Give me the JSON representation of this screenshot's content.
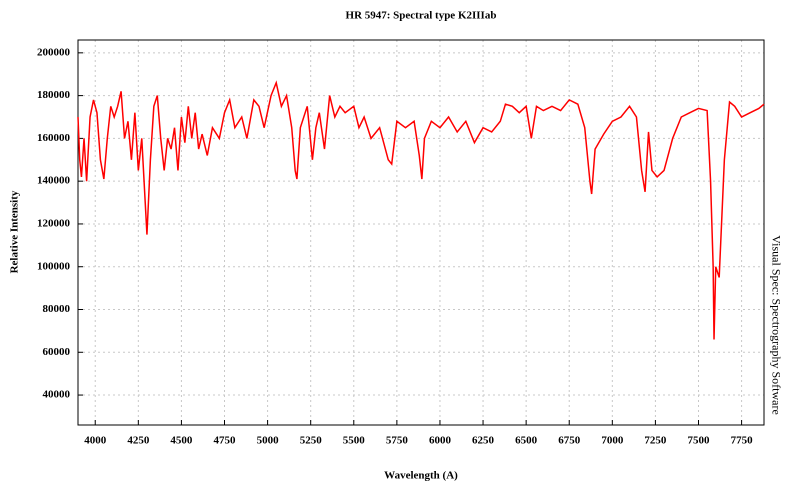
{
  "chart_data": {
    "type": "line",
    "title": "HR 5947: Spectral type K2IIIab",
    "xlabel": "Wavelength (A)",
    "ylabel": "Relative Intensity",
    "annotation": "Visual Spec: Spectrography Software",
    "color": "#ff0000",
    "grid": true,
    "xlim": [
      3900,
      7880
    ],
    "ylim": [
      26000,
      206000
    ],
    "xticks": [
      4000,
      4250,
      4500,
      4750,
      5000,
      5250,
      5500,
      5750,
      6000,
      6250,
      6500,
      6750,
      7000,
      7250,
      7500,
      7750
    ],
    "yticks": [
      40000,
      60000,
      80000,
      100000,
      120000,
      140000,
      160000,
      180000,
      200000
    ],
    "x": [
      3900,
      3910,
      3920,
      3935,
      3950,
      3970,
      3990,
      4010,
      4030,
      4050,
      4070,
      4090,
      4110,
      4130,
      4150,
      4170,
      4190,
      4210,
      4230,
      4250,
      4270,
      4290,
      4300,
      4320,
      4340,
      4360,
      4380,
      4400,
      4420,
      4440,
      4460,
      4480,
      4500,
      4520,
      4540,
      4560,
      4580,
      4600,
      4620,
      4650,
      4680,
      4720,
      4750,
      4780,
      4810,
      4850,
      4880,
      4920,
      4950,
      4980,
      5020,
      5050,
      5080,
      5110,
      5140,
      5160,
      5170,
      5190,
      5230,
      5260,
      5280,
      5300,
      5330,
      5360,
      5390,
      5420,
      5450,
      5500,
      5530,
      5560,
      5600,
      5650,
      5700,
      5720,
      5750,
      5800,
      5850,
      5880,
      5895,
      5910,
      5950,
      6000,
      6050,
      6100,
      6150,
      6200,
      6250,
      6300,
      6350,
      6380,
      6420,
      6460,
      6500,
      6530,
      6560,
      6600,
      6650,
      6700,
      6750,
      6800,
      6840,
      6870,
      6880,
      6900,
      6950,
      7000,
      7050,
      7100,
      7140,
      7170,
      7190,
      7210,
      7230,
      7260,
      7300,
      7350,
      7400,
      7450,
      7500,
      7550,
      7570,
      7585,
      7590,
      7600,
      7620,
      7650,
      7680,
      7710,
      7750,
      7800,
      7850,
      7880
    ],
    "values": [
      170000,
      150000,
      142000,
      160000,
      140000,
      170000,
      178000,
      172000,
      150000,
      141000,
      160000,
      175000,
      170000,
      175000,
      182000,
      160000,
      168000,
      150000,
      172000,
      145000,
      160000,
      130000,
      115000,
      150000,
      175000,
      180000,
      160000,
      145000,
      160000,
      155000,
      165000,
      145000,
      170000,
      158000,
      175000,
      160000,
      172000,
      155000,
      162000,
      152000,
      165000,
      160000,
      172000,
      178000,
      165000,
      170000,
      160000,
      178000,
      175000,
      165000,
      180000,
      186000,
      175000,
      180000,
      165000,
      145000,
      141000,
      165000,
      175000,
      150000,
      165000,
      172000,
      155000,
      180000,
      170000,
      175000,
      172000,
      175000,
      165000,
      170000,
      160000,
      165000,
      150000,
      148000,
      168000,
      165000,
      168000,
      152000,
      141000,
      160000,
      168000,
      165000,
      170000,
      163000,
      168000,
      158000,
      165000,
      163000,
      168000,
      176000,
      175000,
      172000,
      175000,
      160000,
      175000,
      173000,
      175000,
      173000,
      178000,
      176000,
      165000,
      140000,
      134000,
      155000,
      162000,
      168000,
      170000,
      175000,
      170000,
      145000,
      135000,
      163000,
      145000,
      142000,
      145000,
      160000,
      170000,
      172000,
      174000,
      173000,
      140000,
      100000,
      66000,
      100000,
      95000,
      150000,
      177000,
      175000,
      170000,
      172000,
      174000,
      176000
    ]
  }
}
